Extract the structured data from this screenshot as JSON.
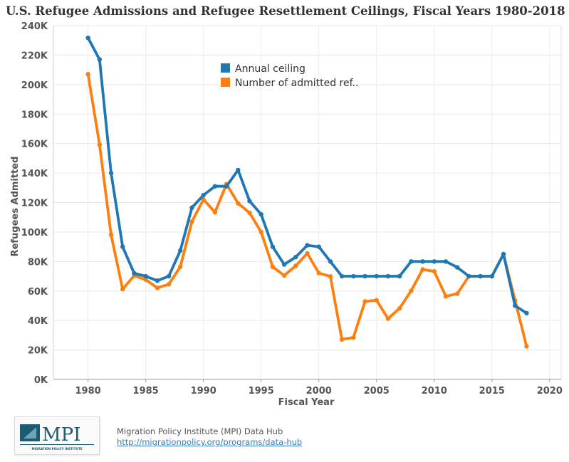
{
  "chart_data": {
    "type": "line",
    "title": "U.S. Refugee Admissions and Refugee Resettlement Ceilings, Fiscal Years 1980-2018",
    "xlabel": "Fiscal Year",
    "ylabel": "Refugees Admitted",
    "xlim": [
      1977,
      2021
    ],
    "ylim": [
      0,
      240000
    ],
    "x_ticks": [
      1980,
      1985,
      1990,
      1995,
      2000,
      2005,
      2010,
      2015,
      2020
    ],
    "y_ticks": [
      0,
      20000,
      40000,
      60000,
      80000,
      100000,
      120000,
      140000,
      160000,
      180000,
      200000,
      220000,
      240000
    ],
    "y_tick_labels": [
      "0K",
      "20K",
      "40K",
      "60K",
      "80K",
      "100K",
      "120K",
      "140K",
      "160K",
      "180K",
      "200K",
      "220K",
      "240K"
    ],
    "x": [
      1980,
      1981,
      1982,
      1983,
      1984,
      1985,
      1986,
      1987,
      1988,
      1989,
      1990,
      1991,
      1992,
      1993,
      1994,
      1995,
      1996,
      1997,
      1998,
      1999,
      2000,
      2001,
      2002,
      2003,
      2004,
      2005,
      2006,
      2007,
      2008,
      2009,
      2010,
      2011,
      2012,
      2013,
      2014,
      2015,
      2016,
      2017,
      2018
    ],
    "legend_position": "top-center",
    "series": [
      {
        "name": "Annual ceiling",
        "color": "#1f77b4",
        "values": [
          231700,
          217000,
          140000,
          90000,
          72000,
          70000,
          67000,
          70000,
          87500,
          116500,
          125000,
          131000,
          131000,
          142000,
          121000,
          112000,
          90000,
          78000,
          83000,
          91000,
          90000,
          80000,
          70000,
          70000,
          70000,
          70000,
          70000,
          70000,
          80000,
          80000,
          80000,
          80000,
          76000,
          70000,
          70000,
          70000,
          85000,
          50000,
          45000
        ]
      },
      {
        "name": "Number of admitted ref..",
        "color": "#ff7f0e",
        "values": [
          207116,
          159252,
          98096,
          61218,
          70393,
          67704,
          62146,
          64528,
          76483,
          107070,
          122066,
          113389,
          132531,
          119448,
          112981,
          99974,
          76403,
          70488,
          77080,
          85525,
          72143,
          69886,
          27131,
          28422,
          52873,
          53738,
          41223,
          48218,
          60107,
          74602,
          73293,
          56384,
          58179,
          69909,
          69975,
          69933,
          84989,
          53716,
          22491
        ]
      }
    ]
  },
  "footer": {
    "org": "Migration Policy Institute (MPI) Data Hub",
    "link": "http://migrationpolicy.org/programs/data-hub",
    "logo_text": "MPI",
    "logo_subtext": "MIGRATION POLICY INSTITUTE"
  }
}
